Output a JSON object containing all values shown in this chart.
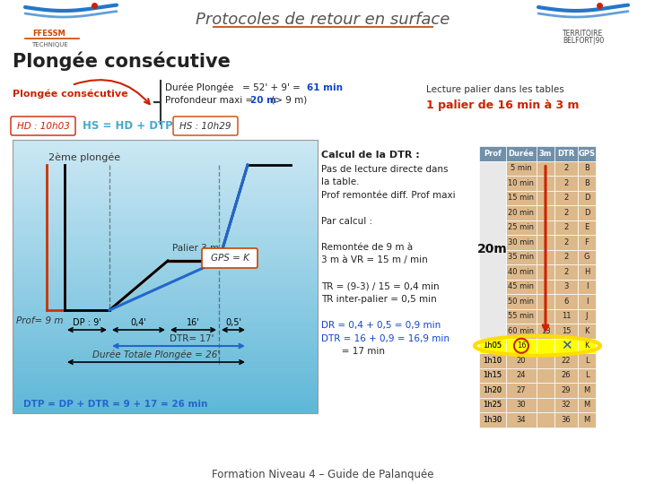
{
  "title": "Protocoles de retour en surface",
  "subtitle": "Plongée consécutive",
  "footer": "Formation Niveau 4 – Guide de Palanquée",
  "bg_color": "#ffffff",
  "diagram_bg_top": "#d8eef8",
  "diagram_bg_bot": "#70c0e0",
  "header_line_color": "#c8602a",
  "table_header_bg": "#7090aa",
  "table_row_bg": "#ddb88a",
  "table_white_bg": "#f5f5f5",
  "table_data": {
    "headers": [
      "Prof",
      "Durée",
      "3m",
      "DTR",
      "GPS"
    ],
    "prof_label": "20m",
    "rows": [
      [
        "",
        "5 min",
        "",
        "2",
        "B"
      ],
      [
        "",
        "10 min",
        "",
        "2",
        "B"
      ],
      [
        "",
        "15 min",
        "",
        "2",
        "D"
      ],
      [
        "",
        "20 min",
        "",
        "2",
        "D"
      ],
      [
        "",
        "25 min",
        "",
        "2",
        "E"
      ],
      [
        "",
        "30 min",
        "",
        "2",
        "F"
      ],
      [
        "",
        "35 min",
        "",
        "2",
        "G"
      ],
      [
        "",
        "40 min",
        "",
        "2",
        "H"
      ],
      [
        "",
        "45 min",
        "",
        "3",
        "I"
      ],
      [
        "",
        "50 min",
        "",
        "6",
        "I"
      ],
      [
        "",
        "55 min",
        "",
        "11",
        "J"
      ],
      [
        "",
        "60 min",
        "13",
        "15",
        "K"
      ],
      [
        "1h05",
        "16",
        "",
        "",
        "K"
      ],
      [
        "1h10",
        "20",
        "",
        "22",
        "L"
      ],
      [
        "1h15",
        "24",
        "",
        "26",
        "L"
      ],
      [
        "1h20",
        "27",
        "",
        "29",
        "M"
      ],
      [
        "1h25",
        "30",
        "",
        "32",
        "M"
      ],
      [
        "1h30",
        "34",
        "",
        "36",
        "M"
      ]
    ],
    "highlighted_row": 12,
    "prof_span_rows": 12
  },
  "diagram": {
    "prof_label": "Prof= 9 m",
    "dp_label": "DP : 9'",
    "palier_label": "Palier 3 m",
    "gps_label": "GPS = K",
    "dtr_label": "DTR= 17'",
    "dtp_label": "Durée Totale Plongée = 26'",
    "dtp_formula": "DTP = DP + DTR = 9 + 17 = 26 min",
    "t04_label": "0,4'",
    "t16_label": "16'",
    "t05_label": "0,5'",
    "second_plongee": "2ème plongée"
  },
  "info_box": {
    "duration_text": "Durée Plongée   = 52' + 9' = ",
    "duration_bold": "61 min",
    "profondeur_text": "Profondeur maxi = ",
    "profondeur_bold": "20 m",
    "profondeur_rest": " (> 9 m)",
    "lecture": "Lecture palier dans les tables",
    "palier_result": "1 palier de 16 min à 3 m"
  },
  "calcul_box": {
    "title": "Calcul de la DTR :",
    "lines": [
      "Pas de lecture directe dans",
      "la table.",
      "Prof remontée diff. Prof maxi",
      "",
      "Par calcul :",
      "",
      "Remontée de 9 m à",
      "3 m à VR = 15 m / min",
      "",
      "TR = (9-3) / 15 = 0,4 min",
      "TR inter-palier = 0,5 min",
      "",
      "DR = 0,4 + 0,5 = 0,9 min",
      "DTR = 16 + 0,9 = 16,9 min",
      "       = 17 min"
    ],
    "dr_line": 12,
    "dtr_line": 13
  },
  "hd_label": "HD : 10h03",
  "hs_formula": "HS = HD + DTP",
  "hs_label": "HS : 10h29",
  "plongee_consecutive": "Plongée consécutive"
}
